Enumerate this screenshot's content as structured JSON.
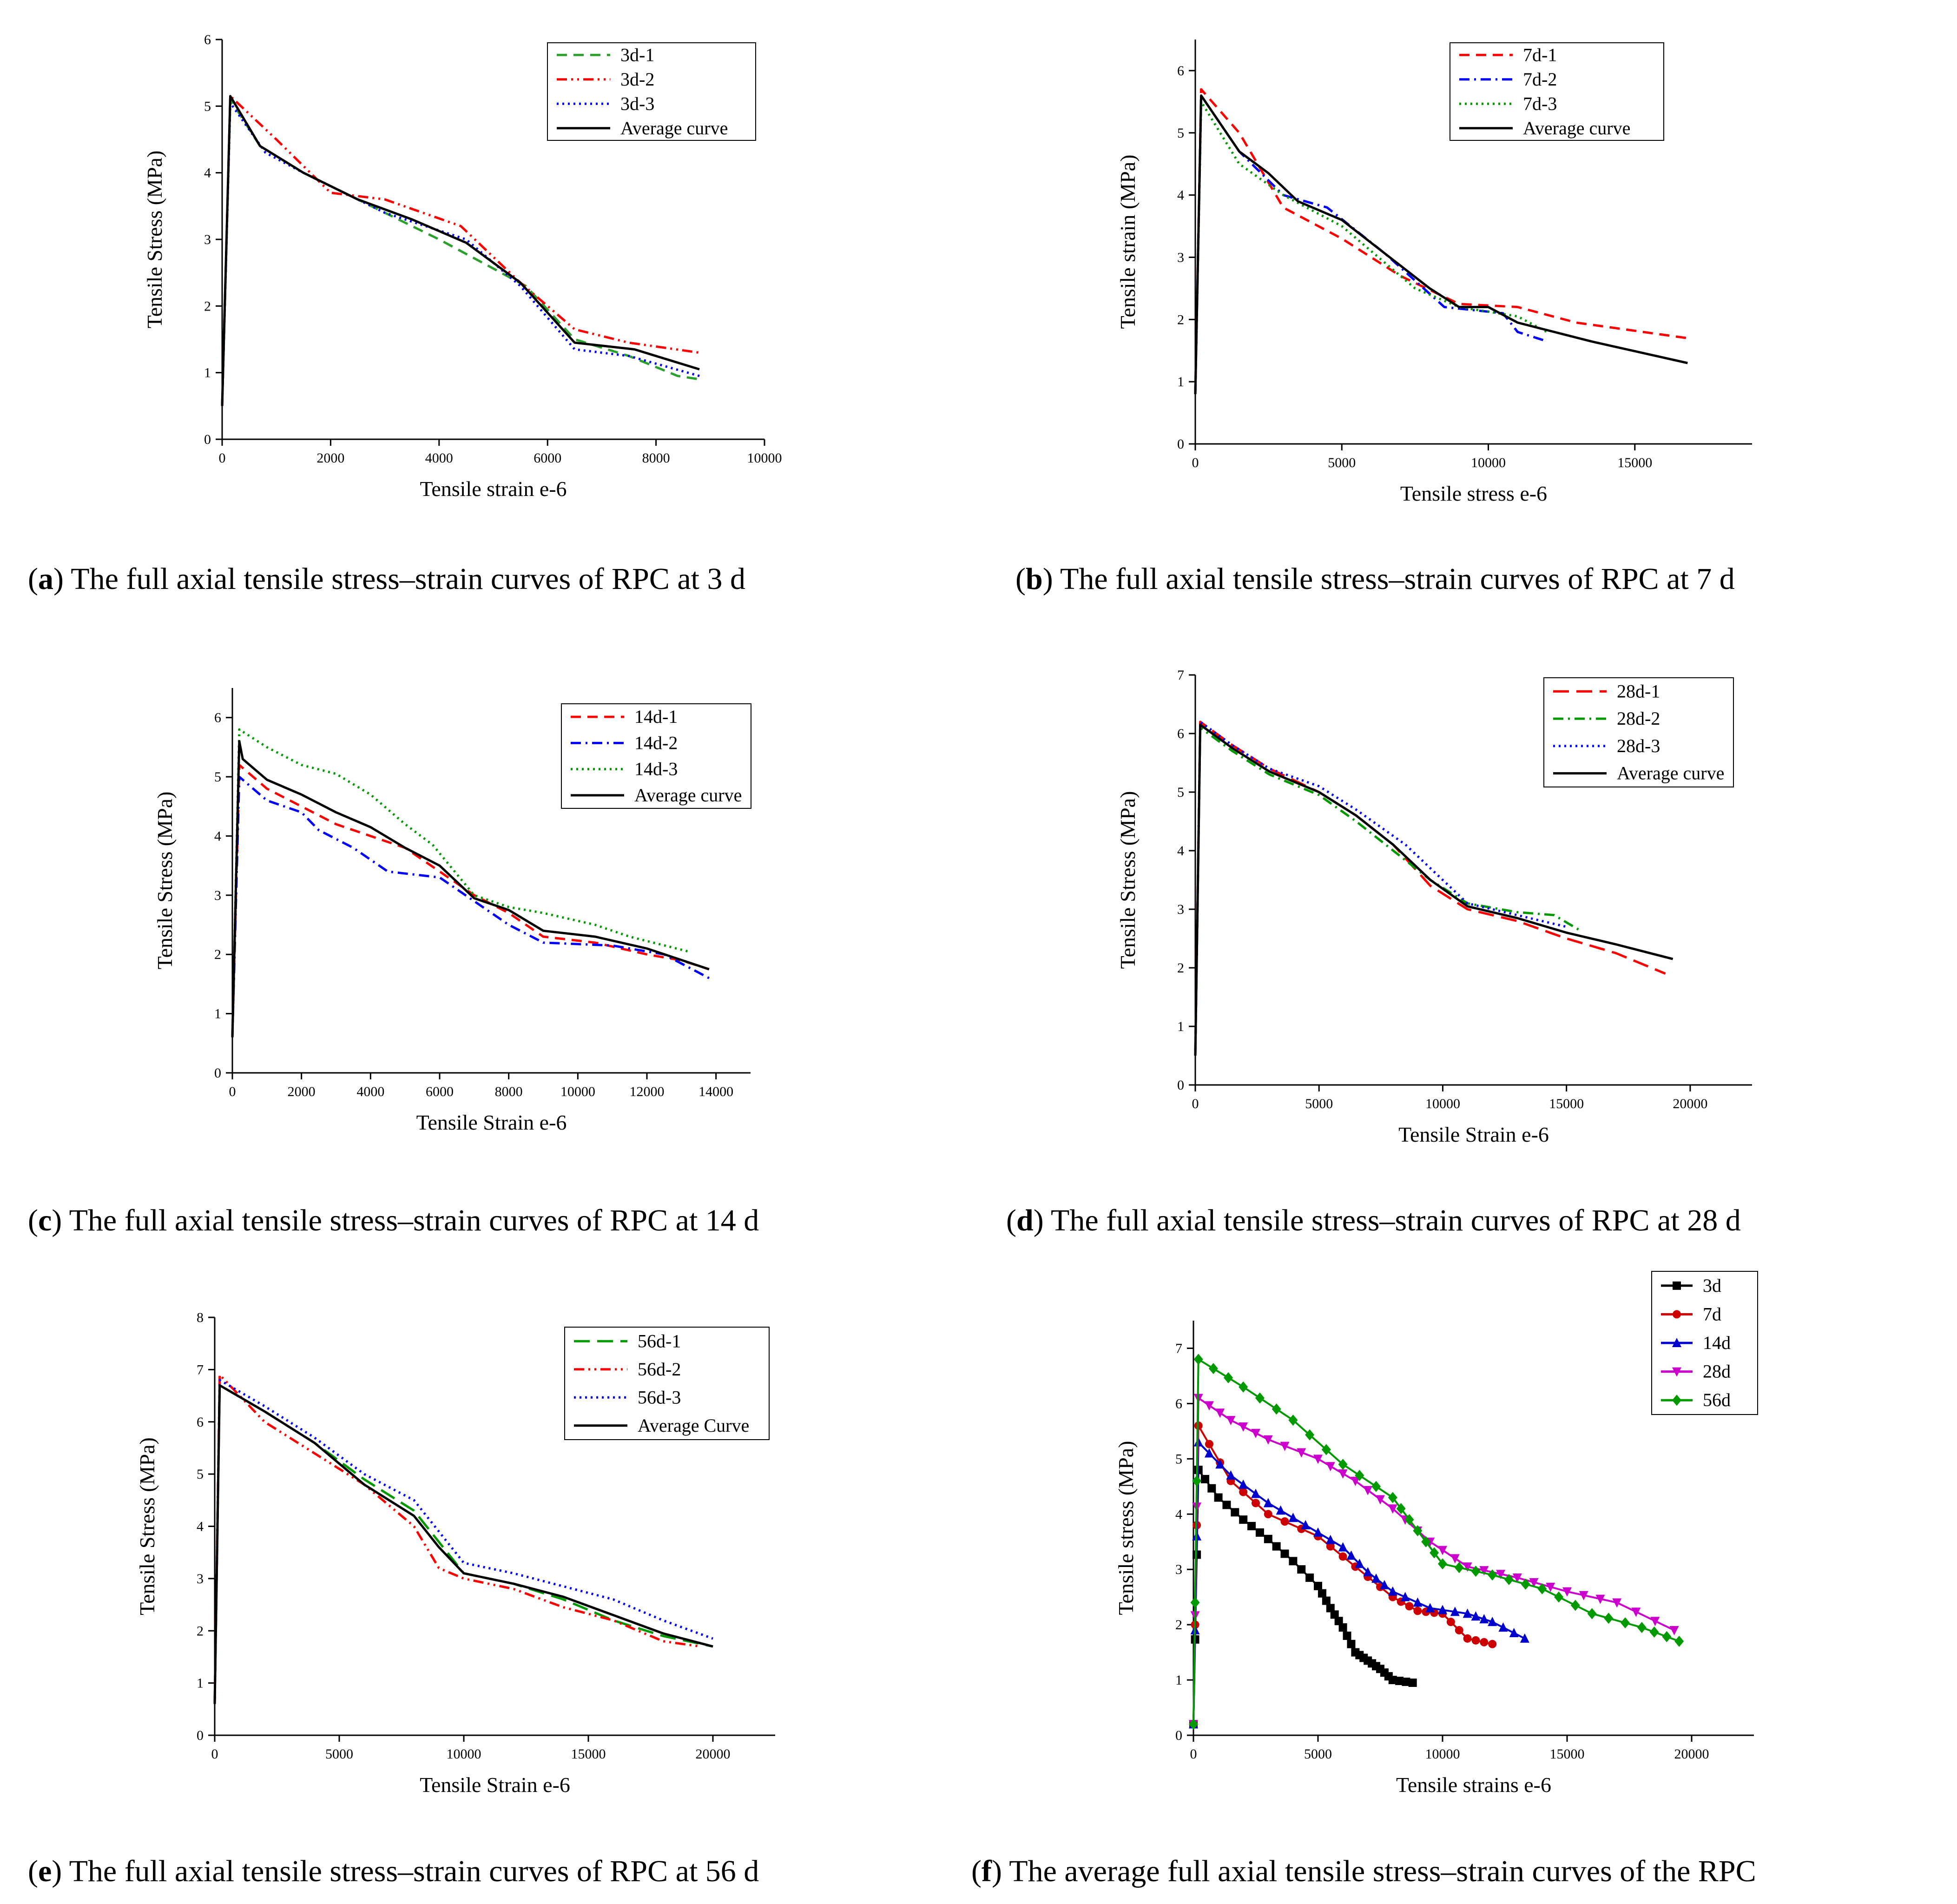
{
  "chart_data": [
    {
      "id": "a",
      "type": "line",
      "caption_letter": "a",
      "caption": "The full axial tensile stress–strain curves of RPC at 3 d",
      "xlabel": "Tensile strain e-6",
      "ylabel": "Tensile Stress (MPa)",
      "xlim": [
        0,
        10000
      ],
      "ylim": [
        0,
        6
      ],
      "xticks": [
        0,
        2000,
        4000,
        6000,
        8000,
        10000
      ],
      "yticks": [
        0,
        1,
        2,
        3,
        4,
        5,
        6
      ],
      "legend_location": "top-right",
      "series": [
        {
          "name": "3d-1",
          "color": "#2ca02c",
          "dash": "dash",
          "x": [
            0,
            150,
            700,
            1500,
            2500,
            4000,
            5600,
            6500,
            7500,
            8400,
            8800
          ],
          "y": [
            0.5,
            5.1,
            4.4,
            4.0,
            3.6,
            3.0,
            2.3,
            1.5,
            1.25,
            0.95,
            0.9
          ]
        },
        {
          "name": "3d-2",
          "color": "#ff0000",
          "dash": "dashdotdot",
          "x": [
            0,
            150,
            1000,
            2000,
            3000,
            4400,
            5500,
            6500,
            7500,
            8800
          ],
          "y": [
            0.5,
            5.15,
            4.5,
            3.7,
            3.6,
            3.2,
            2.35,
            1.65,
            1.45,
            1.3
          ]
        },
        {
          "name": "3d-3",
          "color": "#0000ff",
          "dash": "dot",
          "x": [
            0,
            150,
            800,
            1500,
            3000,
            4500,
            5500,
            6500,
            7500,
            8800
          ],
          "y": [
            0.5,
            5.05,
            4.3,
            4.0,
            3.4,
            3.0,
            2.3,
            1.35,
            1.25,
            0.95
          ]
        },
        {
          "name": "Average curve",
          "color": "#000000",
          "dash": "solid",
          "x": [
            0,
            150,
            700,
            1500,
            2500,
            3500,
            4500,
            5500,
            6500,
            7600,
            8800
          ],
          "y": [
            0.5,
            5.15,
            4.4,
            4.0,
            3.6,
            3.3,
            2.95,
            2.35,
            1.45,
            1.35,
            1.05
          ]
        }
      ]
    },
    {
      "id": "b",
      "type": "line",
      "caption_letter": "b",
      "caption": "The full axial tensile stress–strain curves of RPC at 7 d",
      "xlabel": "Tensile stress e-6",
      "ylabel": "Tensile strain (MPa)",
      "xlim": [
        0,
        19000
      ],
      "ylim": [
        0,
        6.5
      ],
      "xticks": [
        0,
        5000,
        10000,
        15000
      ],
      "yticks": [
        0,
        1,
        2,
        3,
        4,
        5,
        6
      ],
      "legend_location": "top-right",
      "series": [
        {
          "name": "7d-1",
          "color": "#ff0000",
          "dash": "dash",
          "x": [
            0,
            200,
            1500,
            3000,
            5000,
            7000,
            9000,
            11000,
            13000,
            16800
          ],
          "y": [
            0.8,
            5.7,
            5.0,
            3.8,
            3.3,
            2.7,
            2.25,
            2.2,
            1.95,
            1.7
          ]
        },
        {
          "name": "7d-2",
          "color": "#0000ff",
          "dash": "dashdot",
          "x": [
            0,
            200,
            1500,
            3000,
            4500,
            6500,
            8500,
            10500,
            11000,
            12000
          ],
          "y": [
            0.8,
            5.6,
            4.7,
            4.0,
            3.8,
            3.05,
            2.2,
            2.1,
            1.8,
            1.65
          ]
        },
        {
          "name": "7d-3",
          "color": "#009900",
          "dash": "dot",
          "x": [
            0,
            200,
            1500,
            3000,
            5000,
            7500,
            9000,
            11000,
            12000
          ],
          "y": [
            0.8,
            5.5,
            4.5,
            4.0,
            3.5,
            2.5,
            2.2,
            2.05,
            1.8
          ]
        },
        {
          "name": "Average curve",
          "color": "#000000",
          "dash": "solid",
          "x": [
            0,
            200,
            1500,
            2500,
            3500,
            5000,
            6500,
            8000,
            9000,
            10000,
            11000,
            13500,
            16800
          ],
          "y": [
            0.8,
            5.6,
            4.7,
            4.35,
            3.9,
            3.6,
            3.05,
            2.5,
            2.2,
            2.2,
            1.95,
            1.65,
            1.3
          ]
        }
      ]
    },
    {
      "id": "c",
      "type": "line",
      "caption_letter": "c",
      "caption": "The full axial tensile stress–strain curves of RPC at 14 d",
      "xlabel": "Tensile Strain e-6",
      "ylabel": "Tensile Stress (MPa)",
      "xlim": [
        0,
        15000
      ],
      "ylim": [
        0,
        6.5
      ],
      "xticks": [
        0,
        2000,
        4000,
        6000,
        8000,
        10000,
        12000,
        14000
      ],
      "yticks": [
        0,
        1,
        2,
        3,
        4,
        5,
        6
      ],
      "legend_location": "top-right",
      "series": [
        {
          "name": "14d-1",
          "color": "#ff0000",
          "dash": "dash",
          "x": [
            0,
            200,
            1000,
            2000,
            3000,
            4000,
            5000,
            6000,
            7000,
            8000,
            9000,
            10500,
            12000,
            13000,
            13800
          ],
          "y": [
            0.6,
            5.2,
            4.8,
            4.5,
            4.2,
            4.0,
            3.8,
            3.4,
            3.0,
            2.7,
            2.3,
            2.2,
            2.0,
            1.9,
            1.75
          ]
        },
        {
          "name": "14d-2",
          "color": "#0000ff",
          "dash": "dashdot",
          "x": [
            0,
            200,
            1000,
            2000,
            2500,
            3500,
            4500,
            6000,
            7000,
            8000,
            9000,
            11000,
            12500,
            13800
          ],
          "y": [
            0.6,
            5.0,
            4.6,
            4.4,
            4.1,
            3.8,
            3.4,
            3.3,
            2.9,
            2.5,
            2.2,
            2.15,
            2.0,
            1.6
          ]
        },
        {
          "name": "14d-3",
          "color": "#009900",
          "dash": "dot",
          "x": [
            0,
            200,
            1000,
            2000,
            3000,
            4000,
            5000,
            5800,
            7000,
            8000,
            9000,
            10500,
            11500,
            13200
          ],
          "y": [
            0.6,
            5.8,
            5.5,
            5.2,
            5.05,
            4.7,
            4.2,
            3.85,
            3.0,
            2.8,
            2.7,
            2.5,
            2.3,
            2.05
          ]
        },
        {
          "name": "Average curve",
          "color": "#000000",
          "dash": "solid",
          "x": [
            0,
            200,
            300,
            1000,
            2000,
            3000,
            4000,
            5000,
            6000,
            7000,
            8000,
            9000,
            10500,
            12000,
            13800
          ],
          "y": [
            0.6,
            5.6,
            5.3,
            4.95,
            4.7,
            4.4,
            4.15,
            3.8,
            3.5,
            2.95,
            2.75,
            2.4,
            2.3,
            2.1,
            1.75
          ]
        }
      ]
    },
    {
      "id": "d",
      "type": "line",
      "caption_letter": "d",
      "caption": "The full axial tensile stress–strain curves of RPC at 28 d",
      "xlabel": "Tensile Strain e-6",
      "ylabel": "Tensile Stress (MPa)",
      "xlim": [
        0,
        22500
      ],
      "ylim": [
        0,
        7
      ],
      "xticks": [
        0,
        5000,
        10000,
        15000,
        20000
      ],
      "yticks": [
        0,
        1,
        2,
        3,
        4,
        5,
        6,
        7
      ],
      "legend_location": "top-right",
      "series": [
        {
          "name": "28d-1",
          "color": "#ff0000",
          "dash": "longdash",
          "x": [
            0,
            200,
            1500,
            3000,
            5000,
            6500,
            8000,
            9500,
            11000,
            13000,
            15000,
            17000,
            19000
          ],
          "y": [
            0.5,
            6.2,
            5.8,
            5.4,
            5.0,
            4.6,
            4.1,
            3.4,
            3.0,
            2.8,
            2.5,
            2.25,
            1.9
          ]
        },
        {
          "name": "28d-2",
          "color": "#009900",
          "dash": "dashdot",
          "x": [
            0,
            200,
            1500,
            3000,
            5000,
            6500,
            8000,
            9500,
            11000,
            13000,
            14500,
            15500
          ],
          "y": [
            0.5,
            6.1,
            5.7,
            5.3,
            4.95,
            4.5,
            4.0,
            3.5,
            3.1,
            2.95,
            2.9,
            2.65
          ]
        },
        {
          "name": "28d-3",
          "color": "#0000ff",
          "dash": "dot",
          "x": [
            0,
            200,
            1500,
            3000,
            5000,
            6500,
            8500,
            10000,
            11000,
            13000,
            15000
          ],
          "y": [
            0.5,
            6.2,
            5.8,
            5.4,
            5.1,
            4.7,
            4.1,
            3.5,
            3.1,
            2.9,
            2.7
          ]
        },
        {
          "name": "Average curve",
          "color": "#000000",
          "dash": "solid",
          "x": [
            0,
            200,
            1500,
            3000,
            5000,
            6500,
            8000,
            9500,
            11000,
            13000,
            15000,
            17000,
            19300
          ],
          "y": [
            0.5,
            6.15,
            5.75,
            5.35,
            5.0,
            4.6,
            4.1,
            3.5,
            3.05,
            2.85,
            2.6,
            2.4,
            2.15
          ]
        }
      ]
    },
    {
      "id": "e",
      "type": "line",
      "caption_letter": "e",
      "caption": "The full axial tensile stress–strain curves of RPC at 56 d",
      "xlabel": "Tensile Strain e-6",
      "ylabel": "Tensile Stress (MPa)",
      "xlim": [
        0,
        22500
      ],
      "ylim": [
        0,
        8
      ],
      "xticks": [
        0,
        5000,
        10000,
        15000,
        20000
      ],
      "yticks": [
        0,
        1,
        2,
        3,
        4,
        5,
        6,
        7,
        8
      ],
      "legend_location": "top-right",
      "series": [
        {
          "name": "56d-1",
          "color": "#009900",
          "dash": "longdash",
          "x": [
            0,
            200,
            2000,
            4000,
            6000,
            8000,
            10000,
            12000,
            14000,
            16000,
            18000,
            20000
          ],
          "y": [
            0.6,
            6.7,
            6.2,
            5.6,
            4.9,
            4.3,
            3.1,
            2.9,
            2.6,
            2.2,
            1.9,
            1.7
          ]
        },
        {
          "name": "56d-2",
          "color": "#ff0000",
          "dash": "dashdotdot",
          "x": [
            0,
            200,
            2000,
            4000,
            6000,
            8000,
            9000,
            10000,
            12000,
            14000,
            16000,
            18000,
            19500
          ],
          "y": [
            0.6,
            6.9,
            6.0,
            5.4,
            4.8,
            4.0,
            3.2,
            3.0,
            2.8,
            2.45,
            2.2,
            1.8,
            1.7
          ]
        },
        {
          "name": "56d-3",
          "color": "#0000ff",
          "dash": "dot",
          "x": [
            0,
            200,
            2000,
            4000,
            6000,
            8000,
            10000,
            12000,
            14000,
            16000,
            18000,
            20000
          ],
          "y": [
            0.6,
            6.8,
            6.3,
            5.7,
            5.0,
            4.5,
            3.3,
            3.1,
            2.85,
            2.6,
            2.2,
            1.85
          ]
        },
        {
          "name": "Average Curve",
          "color": "#000000",
          "dash": "solid",
          "x": [
            0,
            200,
            2000,
            4000,
            6000,
            8000,
            9000,
            10000,
            12000,
            14000,
            16000,
            18000,
            20000
          ],
          "y": [
            0.6,
            6.7,
            6.2,
            5.6,
            4.8,
            4.2,
            3.6,
            3.1,
            2.9,
            2.65,
            2.3,
            1.95,
            1.7
          ]
        }
      ]
    },
    {
      "id": "f",
      "type": "line",
      "caption_letter": "f",
      "caption": "The average full axial tensile stress–strain curves of the RPC",
      "xlabel": "Tensile strains e-6",
      "ylabel": "Tensile stress (MPa)",
      "xlim": [
        0,
        22500
      ],
      "ylim": [
        0,
        7.5
      ],
      "xticks": [
        0,
        5000,
        10000,
        15000,
        20000
      ],
      "yticks": [
        0,
        1,
        2,
        3,
        4,
        5,
        6,
        7
      ],
      "legend_location": "top-right, above plot",
      "series": [
        {
          "name": "3d",
          "color": "#000000",
          "marker": "square",
          "x": [
            0,
            200,
            1000,
            2000,
            3000,
            4000,
            5000,
            5500,
            6000,
            6500,
            7000,
            7500,
            8000,
            8800
          ],
          "y": [
            0.2,
            4.8,
            4.3,
            3.9,
            3.55,
            3.15,
            2.7,
            2.3,
            1.95,
            1.5,
            1.35,
            1.2,
            1.0,
            0.95
          ]
        },
        {
          "name": "7d",
          "color": "#cc0000",
          "marker": "circle",
          "x": [
            0,
            200,
            1500,
            3000,
            5000,
            6500,
            8000,
            9000,
            10000,
            11000,
            12000
          ],
          "y": [
            0.2,
            5.6,
            4.6,
            4.0,
            3.6,
            3.05,
            2.5,
            2.25,
            2.2,
            1.75,
            1.65
          ]
        },
        {
          "name": "14d",
          "color": "#0000cc",
          "marker": "triangle-up",
          "x": [
            0,
            200,
            1500,
            3000,
            4500,
            6000,
            7000,
            8000,
            9500,
            11000,
            12000,
            13300
          ],
          "y": [
            0.2,
            5.3,
            4.7,
            4.2,
            3.8,
            3.4,
            2.95,
            2.6,
            2.3,
            2.2,
            2.05,
            1.75
          ]
        },
        {
          "name": "28d",
          "color": "#cc00cc",
          "marker": "triangle-down",
          "x": [
            0,
            200,
            1500,
            3000,
            5000,
            6500,
            8000,
            9500,
            11000,
            13000,
            15000,
            17000,
            19300
          ],
          "y": [
            0.2,
            6.1,
            5.7,
            5.35,
            5.0,
            4.6,
            4.1,
            3.5,
            3.05,
            2.85,
            2.6,
            2.4,
            1.9
          ]
        },
        {
          "name": "56d",
          "color": "#009900",
          "marker": "diamond",
          "x": [
            0,
            200,
            2000,
            4000,
            6000,
            8000,
            9000,
            10000,
            12000,
            14000,
            16000,
            18000,
            19500
          ],
          "y": [
            0.2,
            6.8,
            6.3,
            5.7,
            4.9,
            4.3,
            3.7,
            3.1,
            2.9,
            2.65,
            2.2,
            1.95,
            1.7
          ]
        }
      ]
    }
  ]
}
